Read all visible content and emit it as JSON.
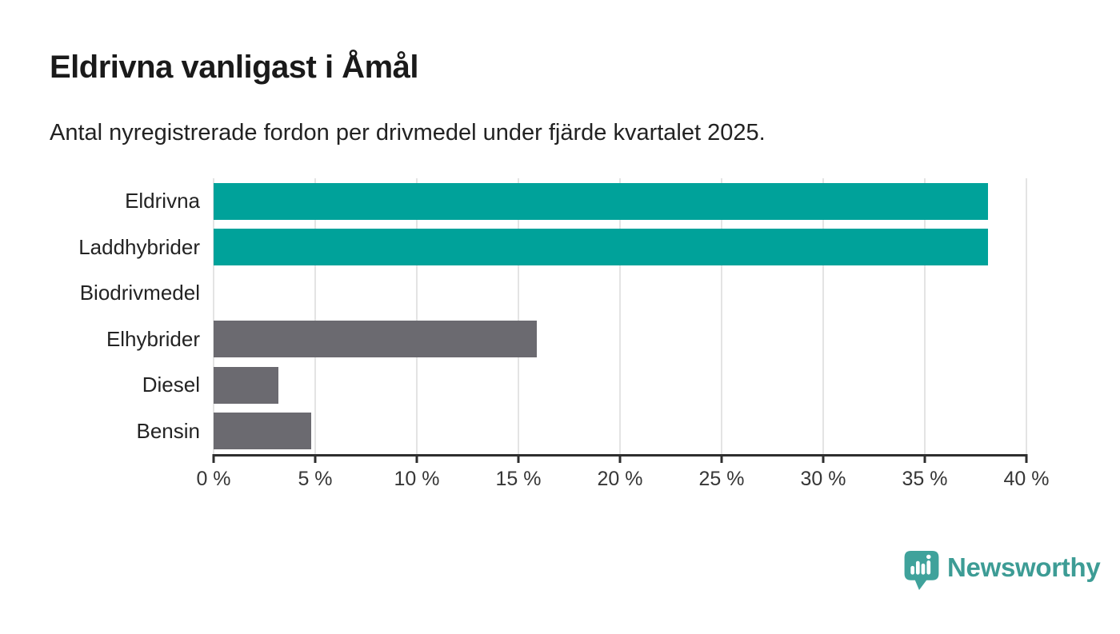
{
  "header": {
    "title": "Eldrivna vanligast i Åmål",
    "subtitle": "Antal nyregistrerade fordon per drivmedel under fjärde kvartalet 2025."
  },
  "chart_data": {
    "type": "bar",
    "orientation": "horizontal",
    "categories": [
      "Eldrivna",
      "Laddhybrider",
      "Biodrivmedel",
      "Elhybrider",
      "Diesel",
      "Bensin"
    ],
    "values": [
      38.1,
      38.1,
      0,
      15.9,
      3.2,
      4.8
    ],
    "bar_colors": [
      "#00a29a",
      "#00a29a",
      "#00a29a",
      "#6b6a70",
      "#6b6a70",
      "#6b6a70"
    ],
    "title": "Eldrivna vanligast i Åmål",
    "xlabel": "",
    "ylabel": "",
    "xlim": [
      0,
      40
    ],
    "x_tick_labels": [
      "0 %",
      "5 %",
      "10 %",
      "15 %",
      "20 %",
      "25 %",
      "30 %",
      "35 %",
      "40 %"
    ],
    "grid": "vertical",
    "legend": "none"
  },
  "colors": {
    "teal": "#00a29a",
    "gray": "#6b6a70",
    "grid": "#e4e4e4",
    "axis": "#2e2e2e",
    "brand": "#3d9c95",
    "brand_icon": "#3fa29b"
  },
  "footer": {
    "brand_name": "Newsworthy"
  }
}
